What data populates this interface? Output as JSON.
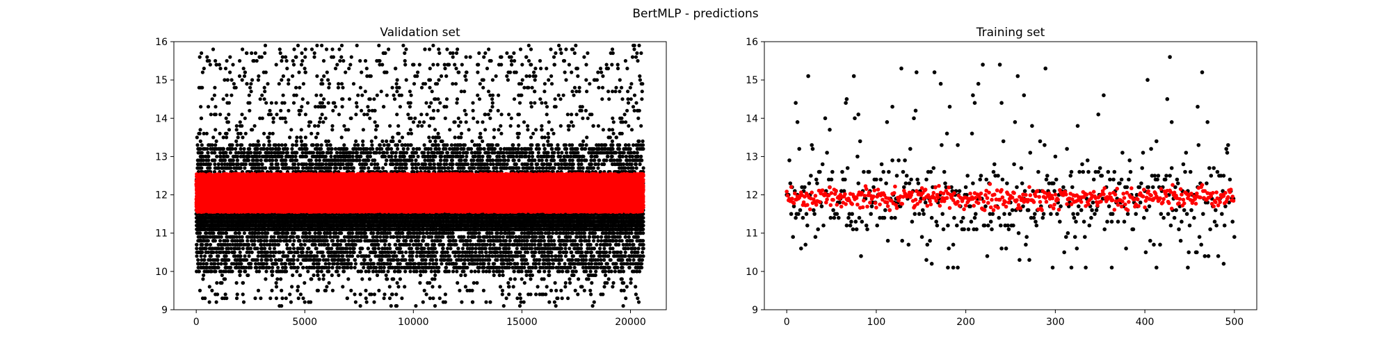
{
  "figure": {
    "suptitle": "BertMLP - predictions"
  },
  "chart_data": [
    {
      "type": "scatter",
      "title": "Validation set",
      "xlabel": "",
      "ylabel": "",
      "xlim": [
        -1030,
        21650
      ],
      "ylim": [
        9,
        16
      ],
      "xticks": [
        0,
        5000,
        10000,
        15000,
        20000
      ],
      "yticks": [
        9,
        10,
        11,
        12,
        13,
        14,
        15,
        16
      ],
      "grid": false,
      "legend": "none",
      "n_points": 20600,
      "series": [
        {
          "color": "#000000",
          "marker": "dot",
          "distribution": {
            "dense_band": [
              11.1,
              11.6
            ],
            "common_range": [
              10.0,
              13.3
            ],
            "sparse_range": [
              9.1,
              15.9
            ],
            "quantized_step": 0.1
          },
          "notable_points": [
            {
              "x": 7400,
              "y": 15.9
            },
            {
              "x": 6000,
              "y": 15.8
            },
            {
              "x": 11200,
              "y": 15.7
            },
            {
              "x": 20300,
              "y": 15.7
            },
            {
              "x": 500,
              "y": 15.6
            },
            {
              "x": 9200,
              "y": 9.1
            },
            {
              "x": 11000,
              "y": 9.1
            },
            {
              "x": 5000,
              "y": 9.2
            },
            {
              "x": 14100,
              "y": 9.4
            }
          ]
        },
        {
          "color": "#ff0000",
          "marker": "dot",
          "distribution": {
            "dense_band": [
              11.55,
              12.55
            ],
            "center": 11.95
          }
        }
      ]
    },
    {
      "type": "scatter",
      "title": "Training set",
      "xlabel": "",
      "ylabel": "",
      "xlim": [
        -25,
        525
      ],
      "ylim": [
        9,
        16
      ],
      "xticks": [
        0,
        100,
        200,
        300,
        400,
        500
      ],
      "yticks": [
        9,
        10,
        11,
        12,
        13,
        14,
        15,
        16
      ],
      "grid": false,
      "legend": "none",
      "n_points": 500,
      "series": [
        {
          "color": "#000000",
          "marker": "dot",
          "distribution": {
            "dense_band": [
              11.1,
              12.6
            ],
            "common_range": [
              10.4,
              13.4
            ],
            "sparse_range": [
              10.1,
              15.6
            ],
            "quantized_step": 0.1
          },
          "notable_points": [
            {
              "x": 428,
              "y": 15.6
            },
            {
              "x": 145,
              "y": 15.2
            },
            {
              "x": 403,
              "y": 15.0
            },
            {
              "x": 67,
              "y": 14.5
            },
            {
              "x": 265,
              "y": 14.6
            },
            {
              "x": 208,
              "y": 14.6
            },
            {
              "x": 10,
              "y": 14.4
            },
            {
              "x": 240,
              "y": 14.4
            },
            {
              "x": 210,
              "y": 14.4
            },
            {
              "x": 459,
              "y": 14.3
            },
            {
              "x": 118,
              "y": 14.3
            },
            {
              "x": 348,
              "y": 14.1
            },
            {
              "x": 80,
              "y": 14.1
            },
            {
              "x": 43,
              "y": 14.0
            },
            {
              "x": 12,
              "y": 13.9
            },
            {
              "x": 112,
              "y": 13.9
            },
            {
              "x": 470,
              "y": 13.9
            },
            {
              "x": 430,
              "y": 13.9
            },
            {
              "x": 325,
              "y": 13.8
            },
            {
              "x": 48,
              "y": 13.7
            },
            {
              "x": 156,
              "y": 10.3
            },
            {
              "x": 162,
              "y": 10.2
            },
            {
              "x": 180,
              "y": 10.1
            },
            {
              "x": 186,
              "y": 10.1
            },
            {
              "x": 191,
              "y": 10.1
            },
            {
              "x": 297,
              "y": 10.1
            },
            {
              "x": 318,
              "y": 10.1
            },
            {
              "x": 363,
              "y": 10.1
            },
            {
              "x": 413,
              "y": 10.1
            },
            {
              "x": 448,
              "y": 10.1
            },
            {
              "x": 488,
              "y": 10.2
            },
            {
              "x": 500,
              "y": 10.9
            }
          ]
        },
        {
          "color": "#ff0000",
          "marker": "dot",
          "distribution": {
            "dense_band": [
              11.7,
              12.2
            ],
            "center": 11.92,
            "extremes": [
              11.6,
              12.4
            ]
          }
        }
      ]
    }
  ]
}
